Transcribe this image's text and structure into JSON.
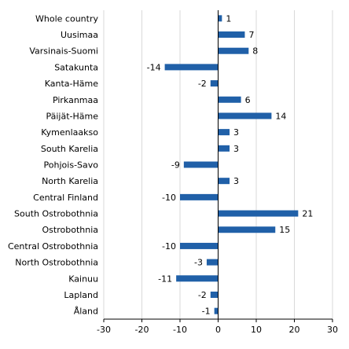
{
  "chart_data": {
    "type": "bar",
    "orientation": "horizontal",
    "title": "",
    "xlabel": "",
    "ylabel": "",
    "categories": [
      "Whole country",
      "Uusimaa",
      "Varsinais-Suomi",
      "Satakunta",
      "Kanta-Häme",
      "Pirkanmaa",
      "Päijät-Häme",
      "Kymenlaakso",
      "South Karelia",
      "Pohjois-Savo",
      "North Karelia",
      "Central Finland",
      "South Ostrobothnia",
      "Ostrobothnia",
      "Central Ostrobothnia",
      "North Ostrobothnia",
      "Kainuu",
      "Lapland",
      "Åland"
    ],
    "values": [
      1,
      7,
      8,
      -14,
      -2,
      6,
      14,
      3,
      3,
      -9,
      3,
      -10,
      21,
      15,
      -10,
      -3,
      -11,
      -2,
      -1
    ],
    "value_labels": [
      "1",
      "7",
      "8",
      "-14",
      "-2",
      "6",
      "14",
      "3",
      "3",
      "-9",
      "3",
      "-10",
      "21",
      "15",
      "-10",
      "-3",
      "-11",
      "-2",
      "-1"
    ],
    "xlim": [
      -30,
      30
    ],
    "xticks": [
      -30,
      -20,
      -10,
      0,
      10,
      20,
      30
    ],
    "xtick_labels": [
      "-30",
      "-20",
      "-10",
      "0",
      "10",
      "20",
      "30"
    ],
    "grid": "vertical",
    "legend": "none",
    "colors": {
      "bar": "#2060a8",
      "grid": "#d9d9d9",
      "axis": "#000000",
      "text": "#000000"
    }
  }
}
